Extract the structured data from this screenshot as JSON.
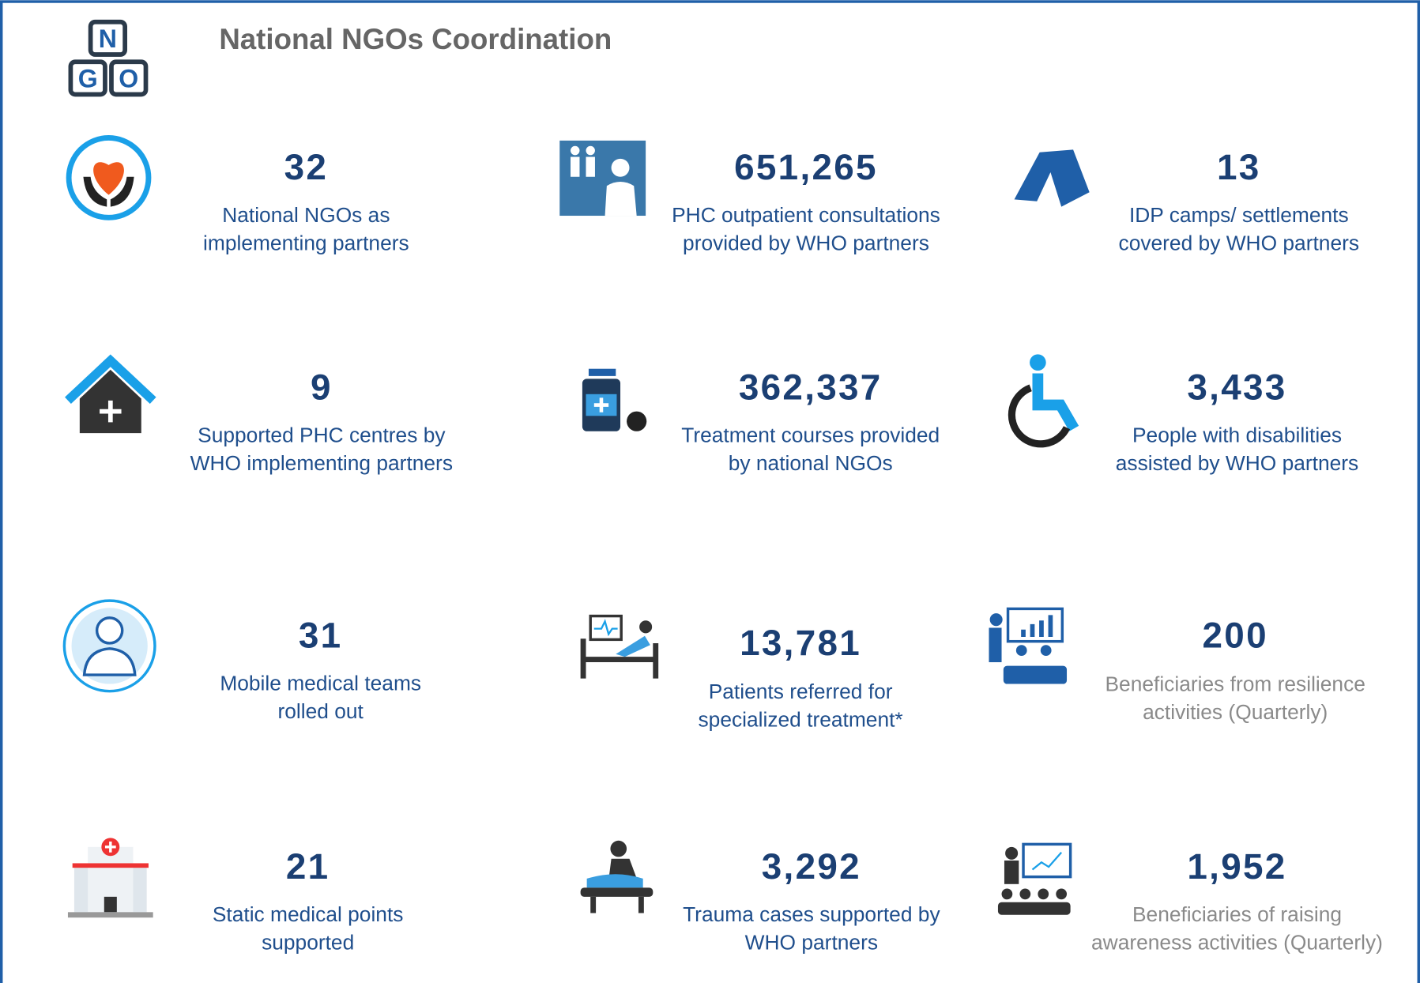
{
  "header": {
    "logo": [
      "N",
      "G",
      "O"
    ],
    "title": "National NGOs Coordination"
  },
  "items": [
    {
      "value": "32",
      "label": [
        "National NGOs as",
        "implementing partners"
      ]
    },
    {
      "value": "651,265",
      "label": [
        "PHC outpatient consultations",
        "provided by WHO partners"
      ]
    },
    {
      "value": "13",
      "label": [
        "IDP camps/ settlements",
        "covered by WHO partners"
      ]
    },
    {
      "value": "9",
      "label": [
        "Supported PHC centres by",
        "WHO implementing partners"
      ]
    },
    {
      "value": "362,337",
      "label": [
        "Treatment courses provided",
        "by national NGOs"
      ]
    },
    {
      "value": "3,433",
      "label": [
        "People with disabilities",
        "assisted by WHO partners"
      ]
    },
    {
      "value": "31",
      "label": [
        "Mobile medical teams",
        "rolled out"
      ]
    },
    {
      "value": "13,781",
      "label": [
        "Patients referred for",
        "specialized treatment*"
      ]
    },
    {
      "value": "200",
      "label": [
        "Beneficiaries from resilience",
        "activities  (Quarterly)"
      ]
    },
    {
      "value": "21",
      "label": [
        "Static medical points",
        "supported"
      ]
    },
    {
      "value": "3,292",
      "label": [
        "Trauma cases supported by",
        "WHO partners"
      ]
    },
    {
      "value": "1,952",
      "label": [
        "Beneficiaries of raising",
        "awareness activities (Quarterly)"
      ]
    }
  ]
}
